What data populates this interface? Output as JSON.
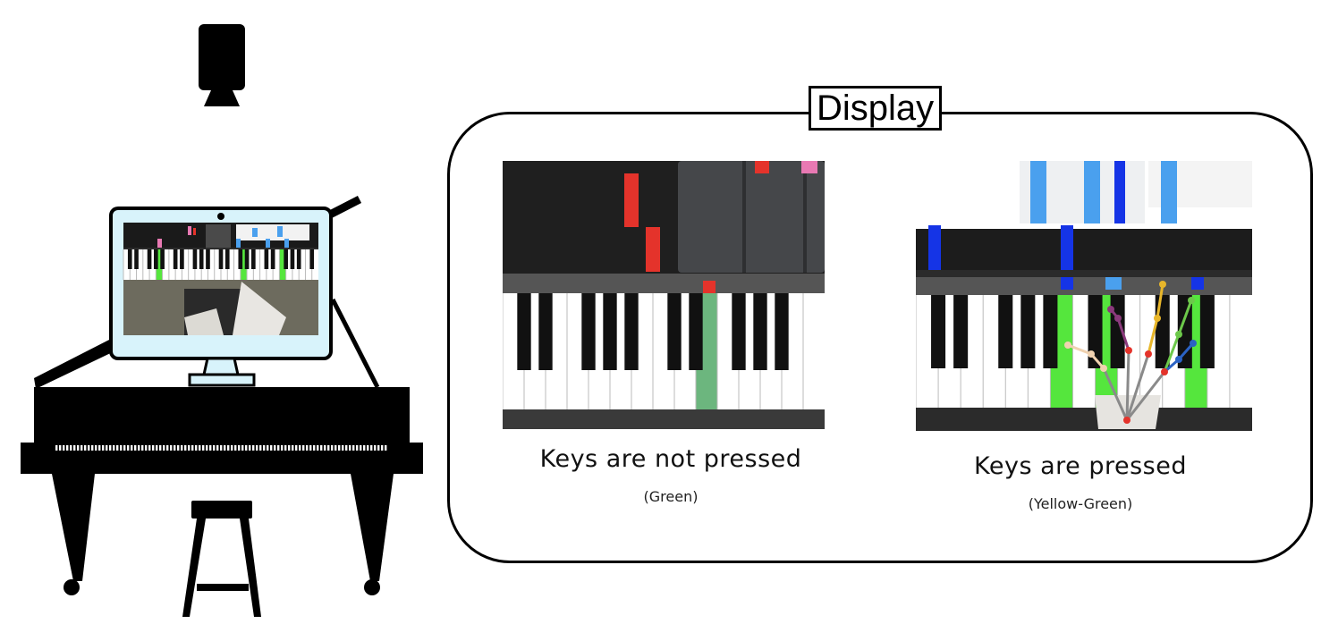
{
  "display": {
    "title": "Display"
  },
  "panels": [
    {
      "caption": "Keys are not pressed",
      "color_label": "(Green)",
      "highlight_color": "#6cb67e"
    },
    {
      "caption": "Keys are pressed",
      "color_label": "(Yellow-Green)",
      "highlight_color": "#55e63d"
    }
  ],
  "icons": [
    "camera-icon",
    "monitor-icon",
    "grand-piano-icon",
    "stool-icon"
  ],
  "colors": {
    "red_note": "#e4332b",
    "pink_note": "#e879b3",
    "blue_note": "#4aa0ee",
    "dark_blue_note": "#1534e6"
  }
}
